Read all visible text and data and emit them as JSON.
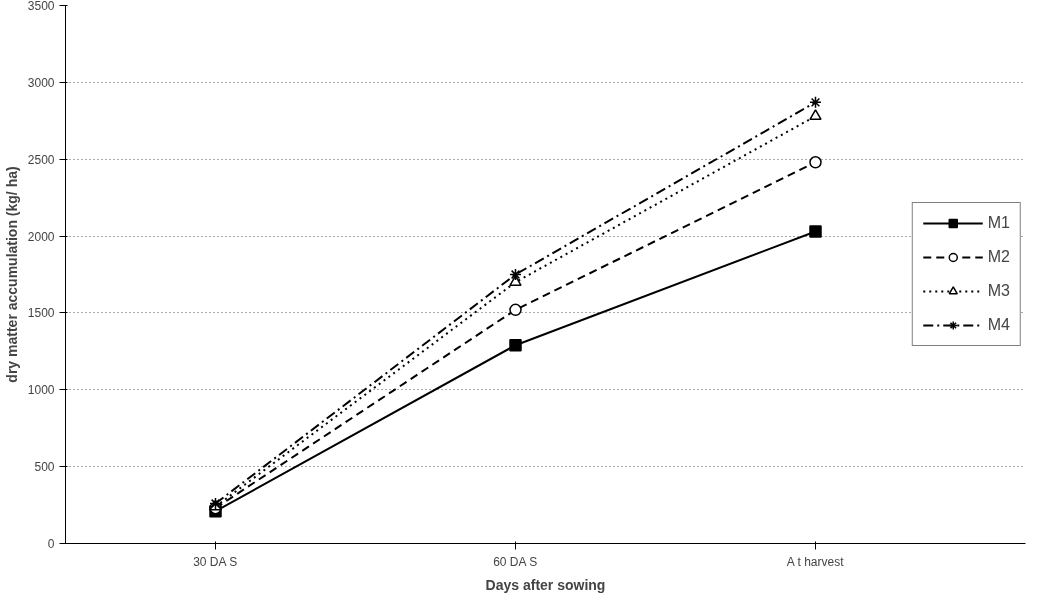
{
  "chart_data": {
    "type": "line",
    "xlabel": "Days after sowing",
    "ylabel": "dry matter accumulation (kg/ ha)",
    "categories": [
      "30 DA S",
      "60 DA S",
      "A t harvest"
    ],
    "ylim": [
      0,
      3500
    ],
    "yticks": [
      0,
      500,
      1000,
      1500,
      2000,
      2500,
      3000,
      3500
    ],
    "grid": "y",
    "legend": "right",
    "series": [
      {
        "name": "M1",
        "color": "#000000",
        "values": [
          210,
          1290,
          2030
        ],
        "marker": "square",
        "line_style": "solid"
      },
      {
        "name": "M2",
        "color": "#000000",
        "values": [
          230,
          1520,
          2480
        ],
        "marker": "circle",
        "line_style": "dashed"
      },
      {
        "name": "M3",
        "color": "#000000",
        "values": [
          240,
          1700,
          2780
        ],
        "marker": "triangle",
        "line_style": "dotted"
      },
      {
        "name": "M4",
        "color": "#000000",
        "values": [
          260,
          1750,
          2870
        ],
        "marker": "cross",
        "line_style": "dashdot"
      }
    ]
  }
}
